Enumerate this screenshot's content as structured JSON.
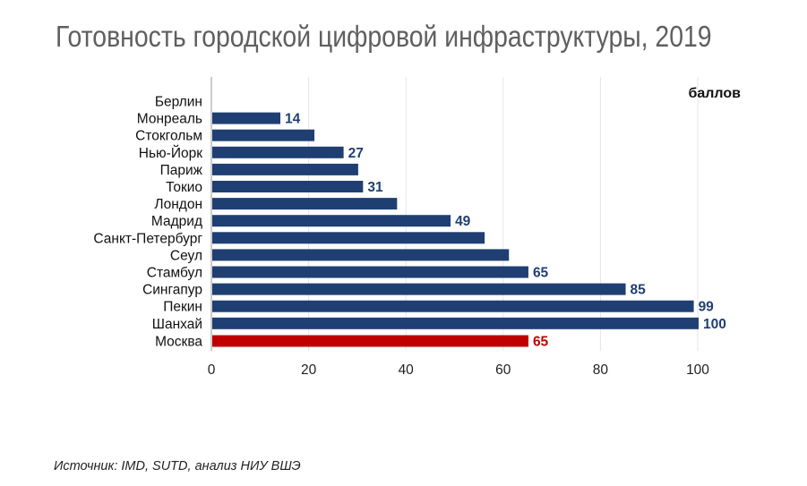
{
  "chart_data": {
    "type": "bar",
    "orientation": "horizontal",
    "title": "Готовность городской цифровой инфраструктуры, 2019",
    "unit_label": "баллов",
    "source": "Источник: IMD, SUTD, анализ НИУ ВШЭ",
    "xlim": [
      0,
      100
    ],
    "xticks": [
      "0",
      "20",
      "40",
      "60",
      "80",
      "100"
    ],
    "grid": "vertical",
    "categories": [
      "Берлин",
      "Монреаль",
      "Стокгольм",
      "Нью-Йорк",
      "Париж",
      "Токио",
      "Лондон",
      "Мадрид",
      "Санкт-Петербург",
      "Сеул",
      "Стамбул",
      "Сингапур",
      "Пекин",
      "Шанхай",
      "Москва"
    ],
    "values": [
      0,
      14,
      21,
      27,
      30,
      31,
      38,
      49,
      56,
      61,
      65,
      85,
      99,
      100,
      65
    ],
    "data_labels": [
      "",
      "14",
      "",
      "27",
      "",
      "31",
      "",
      "49",
      "",
      "",
      "65",
      "85",
      "99",
      "100",
      "65"
    ],
    "colors": {
      "default": "#1f3f73",
      "highlight": "#c00000",
      "highlight_category": "Москва"
    }
  }
}
